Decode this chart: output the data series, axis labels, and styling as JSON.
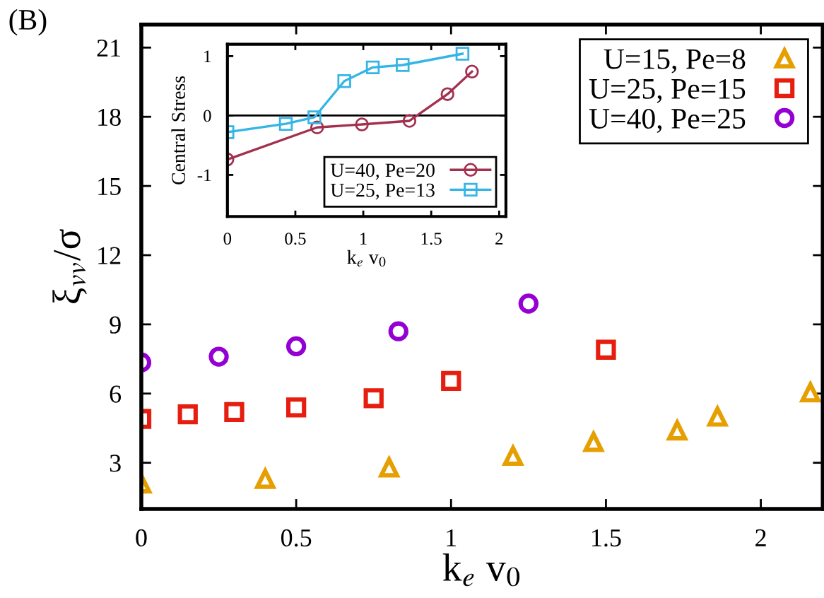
{
  "chart_data": [
    {
      "type": "scatter",
      "xlabel": "k$_{e}$ v$_{0}$",
      "ylabel": "ξ$_{vv}$/σ",
      "xlim": [
        0,
        2.2
      ],
      "ylim": [
        1,
        22
      ],
      "xticks": [
        0,
        0.5,
        1,
        1.5,
        2
      ],
      "yticks": [
        3,
        6,
        9,
        12,
        15,
        18,
        21
      ],
      "grid": false,
      "legend": "top right",
      "annotations": [
        "(B)"
      ],
      "series": [
        {
          "name": "U=15, Pe=8",
          "color": "#e69f00",
          "marker": "triangle",
          "x": [
            0,
            0.4,
            0.8,
            1.2,
            1.46,
            1.73,
            1.86,
            2.16
          ],
          "values": [
            2.1,
            2.3,
            2.8,
            3.3,
            3.9,
            4.4,
            5.0,
            6.05
          ]
        },
        {
          "name": "U=25, Pe=15",
          "color": "#e51e10",
          "marker": "square",
          "x": [
            0,
            0.15,
            0.3,
            0.5,
            0.75,
            1.0,
            1.5
          ],
          "values": [
            4.9,
            5.1,
            5.2,
            5.4,
            5.8,
            6.55,
            7.9
          ]
        },
        {
          "name": "U=40, Pe=25",
          "color": "#9400d3",
          "marker": "circle",
          "x": [
            0,
            0.25,
            0.5,
            0.83,
            1.25
          ],
          "values": [
            7.35,
            7.6,
            8.05,
            8.7,
            9.9
          ]
        }
      ]
    },
    {
      "type": "line",
      "xlabel": "k$_{e}$ v$_{0}$",
      "ylabel": "Central Stress",
      "xlim": [
        0,
        2.05
      ],
      "ylim": [
        -1.7,
        1.2
      ],
      "xticks": [
        0,
        0.5,
        1,
        1.5,
        2
      ],
      "yticks": [
        -1,
        0,
        1
      ],
      "grid": false,
      "legend": "bottom right",
      "line_style": "solid",
      "ref_lines": [
        {
          "axis": "y",
          "value": 0,
          "color": "#000000"
        }
      ],
      "series": [
        {
          "name": "U=40, Pe=20",
          "color": "#a3304f",
          "marker": "circle",
          "x": [
            0,
            0.66,
            0.99,
            1.34,
            1.62,
            1.8
          ],
          "values": [
            -0.74,
            -0.2,
            -0.15,
            -0.09,
            0.36,
            0.74
          ]
        },
        {
          "name": "U=25, Pe=13",
          "color": "#35b5e5",
          "marker": "square",
          "x": [
            0,
            0.43,
            0.64,
            0.86,
            1.07,
            1.29,
            1.73
          ],
          "values": [
            -0.28,
            -0.14,
            -0.03,
            0.58,
            0.81,
            0.85,
            1.04
          ]
        }
      ]
    }
  ]
}
